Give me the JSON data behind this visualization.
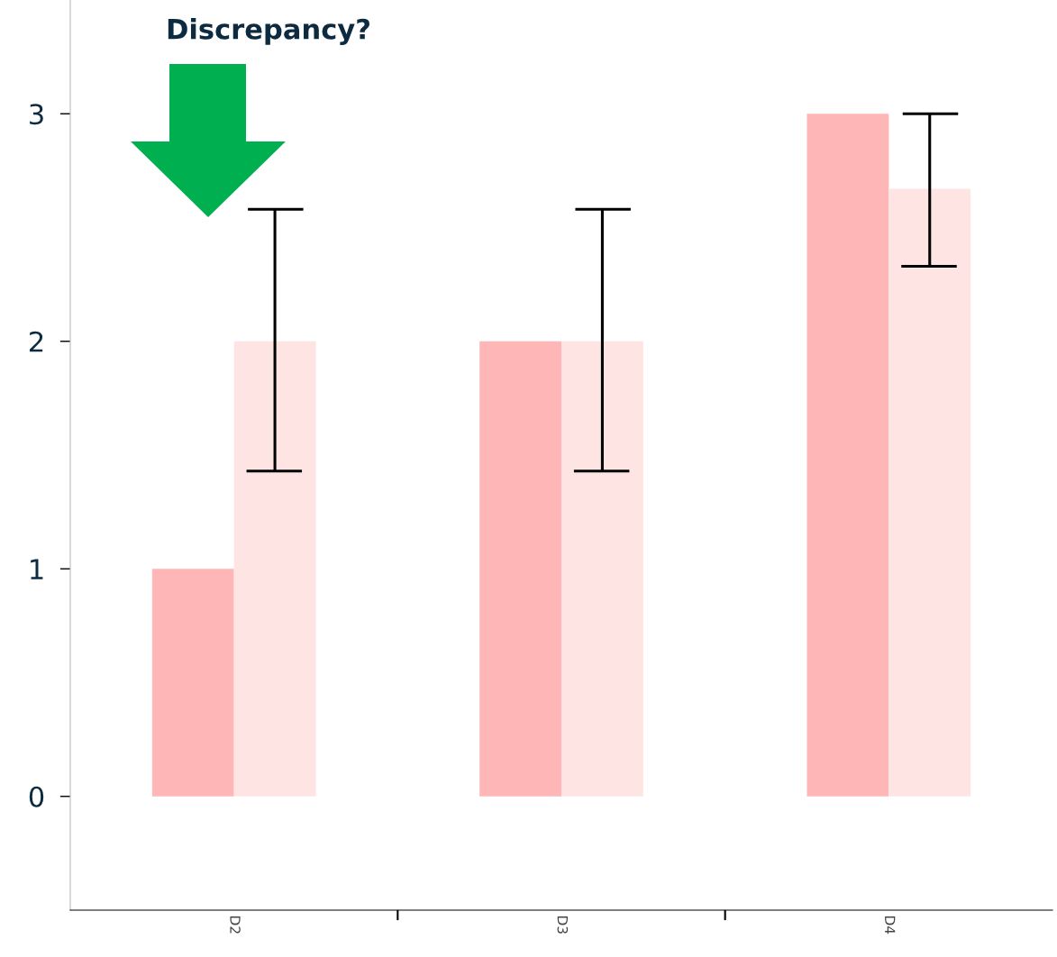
{
  "chart_data": {
    "type": "bar",
    "categories": [
      "D2",
      "D3",
      "D4"
    ],
    "series": [
      {
        "color": "#ffb6b6",
        "values": [
          1,
          2,
          3
        ]
      },
      {
        "color": "#ffe4e4",
        "values": [
          2,
          2,
          2.67
        ],
        "errors": [
          [
            1.43,
            2.58
          ],
          [
            1.43,
            2.58
          ],
          [
            2.33,
            3.0
          ]
        ]
      }
    ],
    "ylim": [
      -0.5,
      3.5
    ],
    "yticks": [
      0,
      1,
      2,
      3
    ],
    "annotations": [
      "Discrepancy?"
    ],
    "grid": false,
    "legend": false
  }
}
